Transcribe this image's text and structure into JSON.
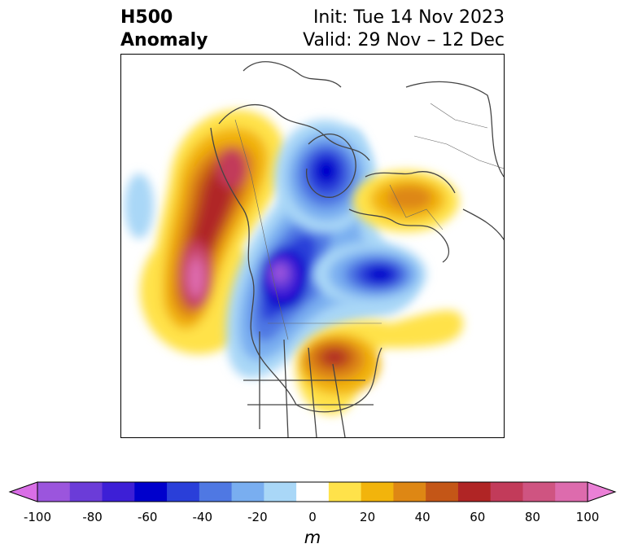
{
  "header": {
    "field": "H500",
    "field_sub": "Anomaly",
    "init": "Init: Tue 14 Nov 2023",
    "valid": "Valid: 29 Nov – 12 Dec"
  },
  "colorbar": {
    "unit": "m",
    "ticks": [
      "-100",
      "-80",
      "-60",
      "-40",
      "-20",
      "0",
      "20",
      "40",
      "60",
      "80",
      "100"
    ],
    "colors": [
      "#d96ee6",
      "#9b55dd",
      "#6b3cd8",
      "#3d1fd6",
      "#0000cc",
      "#2a3fd9",
      "#4f78e3",
      "#79aef0",
      "#a9d7f7",
      "#ffffff",
      "#ffe24a",
      "#f2b40c",
      "#de8714",
      "#c45617",
      "#b02525",
      "#c23b5a",
      "#cf5481",
      "#dd6bad",
      "#ea80d6"
    ]
  },
  "map": {
    "projection": "polar-stereographic",
    "features": [
      {
        "name": "ridge-north-pacific-alaska",
        "sign": "positive",
        "peak_m": 80
      },
      {
        "name": "trough-canada-hudson-bay",
        "sign": "negative",
        "peak_m": -100
      },
      {
        "name": "trough-baffin-greenland",
        "sign": "negative",
        "peak_m": -60
      },
      {
        "name": "trough-north-atlantic",
        "sign": "negative",
        "peak_m": -60
      },
      {
        "name": "ridge-scandinavia-russia",
        "sign": "positive",
        "peak_m": 40
      },
      {
        "name": "ridge-eastern-us",
        "sign": "positive",
        "peak_m": 60
      }
    ]
  }
}
